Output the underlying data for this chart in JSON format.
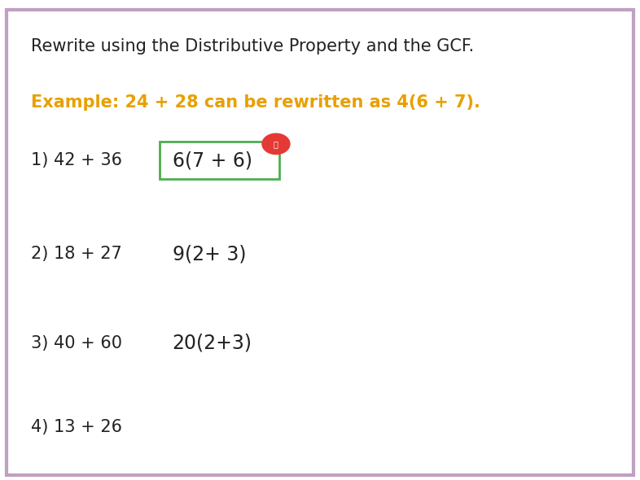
{
  "title": "Rewrite using the Distributive Property and the GCF.",
  "title_color": "#222222",
  "title_fontsize": 15,
  "example_text": "Example: 24 + 28 can be rewritten as 4(6 + 7).",
  "example_color": "#E8A000",
  "example_fontsize": 15,
  "problems": [
    {
      "label": "1) 42 + 36",
      "answer": "6(7 + 6)",
      "has_box": true,
      "answer_fontsize": 17
    },
    {
      "label": "2) 18 + 27",
      "answer": "9(2+ 3)",
      "has_box": false,
      "answer_fontsize": 17
    },
    {
      "label": "3) 40 + 60",
      "answer": "20(2+3)",
      "has_box": false,
      "answer_fontsize": 17
    },
    {
      "label": "4) 13 + 26",
      "answer": "",
      "has_box": false,
      "answer_fontsize": 17
    }
  ],
  "label_fontsize": 15,
  "problem_color": "#222222",
  "answer_color": "#222222",
  "box_color": "#4CAF50",
  "background_color": "#FFFFFF",
  "border_color": "#C0A0C0",
  "border_width": 3,
  "delete_icon_color": "#E53935",
  "fig_width": 7.86,
  "fig_height": 5.9
}
